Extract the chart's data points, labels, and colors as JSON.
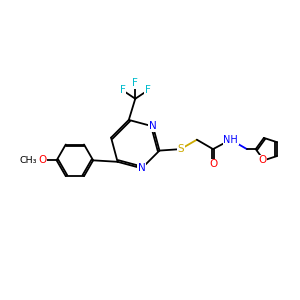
{
  "bg_color": "#ffffff",
  "bond_color": "#000000",
  "N_color": "#0000ff",
  "O_color": "#ff0000",
  "S_color": "#ccaa00",
  "F_color": "#00bbcc",
  "lw": 1.3,
  "dbl_sep": 0.07,
  "figsize": [
    3.0,
    3.0
  ],
  "dpi": 100,
  "xlim": [
    0,
    10
  ],
  "ylim": [
    0,
    10
  ]
}
